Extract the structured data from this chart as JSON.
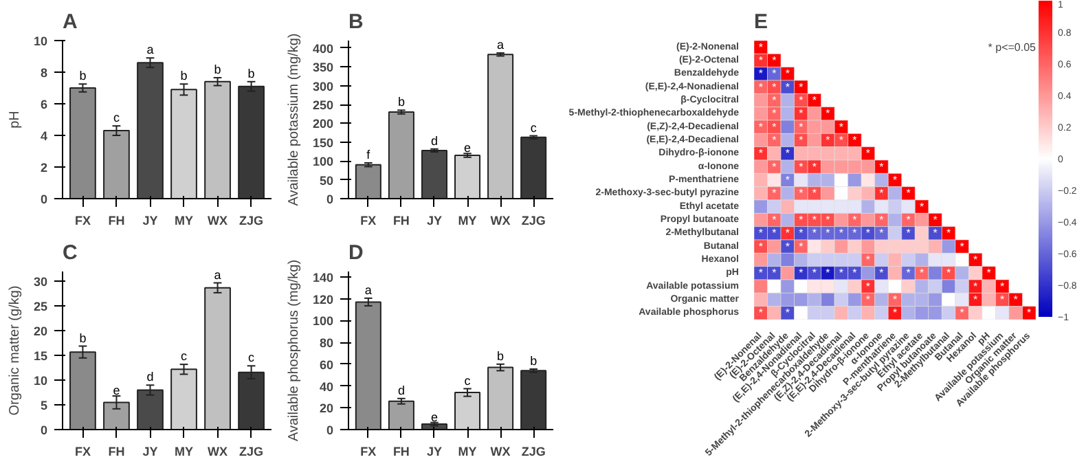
{
  "chart_data": [
    {
      "type": "bar",
      "title": "A",
      "ylabel": "pH",
      "categories": [
        "FX",
        "FH",
        "JY",
        "MY",
        "WX",
        "ZJG"
      ],
      "values": [
        7.0,
        4.3,
        8.6,
        6.9,
        7.4,
        7.1
      ],
      "errors": [
        0.25,
        0.3,
        0.3,
        0.35,
        0.25,
        0.3
      ],
      "value_labels": [
        "b",
        "c",
        "a",
        "b",
        "b",
        "b"
      ],
      "colors": [
        "#8a8a8a",
        "#a0a0a0",
        "#4a4a4a",
        "#d0d0d0",
        "#c0c0c0",
        "#383838"
      ],
      "ylim": [
        0,
        10
      ],
      "yticks": [
        0,
        2,
        4,
        6,
        8,
        10
      ],
      "grid": false
    },
    {
      "type": "bar",
      "title": "B",
      "ylabel": "Available potassium (mg/kg)",
      "categories": [
        "FX",
        "FH",
        "JY",
        "MY",
        "WX",
        "ZJG"
      ],
      "values": [
        90,
        230,
        128,
        115,
        383,
        163
      ],
      "errors": [
        5,
        5,
        4,
        5,
        4,
        4
      ],
      "value_labels": [
        "f",
        "b",
        "d",
        "e",
        "a",
        "c"
      ],
      "colors": [
        "#8a8a8a",
        "#a0a0a0",
        "#4a4a4a",
        "#d0d0d0",
        "#c0c0c0",
        "#383838"
      ],
      "ylim": [
        0,
        420
      ],
      "yticks": [
        0,
        50,
        100,
        150,
        200,
        250,
        300,
        350,
        400
      ],
      "grid": false
    },
    {
      "type": "bar",
      "title": "C",
      "ylabel": "Organic matter (g/kg)",
      "categories": [
        "FX",
        "FH",
        "JY",
        "MY",
        "WX",
        "ZJG"
      ],
      "values": [
        15.7,
        5.5,
        8.0,
        12.2,
        28.7,
        11.6
      ],
      "errors": [
        1.2,
        1.3,
        1.0,
        1.0,
        1.0,
        1.3
      ],
      "value_labels": [
        "b",
        "e",
        "d",
        "c",
        "a",
        "c"
      ],
      "colors": [
        "#8a8a8a",
        "#a0a0a0",
        "#4a4a4a",
        "#d0d0d0",
        "#c0c0c0",
        "#383838"
      ],
      "ylim": [
        0,
        32
      ],
      "yticks": [
        0,
        5,
        10,
        15,
        20,
        25,
        30
      ],
      "grid": false
    },
    {
      "type": "bar",
      "title": "D",
      "ylabel": "Available phosphorus (mg/kg)",
      "categories": [
        "FX",
        "FH",
        "JY",
        "MY",
        "WX",
        "ZJG"
      ],
      "values": [
        117,
        26,
        5,
        34,
        57,
        54
      ],
      "errors": [
        3.5,
        2.5,
        1.5,
        3.5,
        3,
        1.5
      ],
      "value_labels": [
        "a",
        "d",
        "e",
        "c",
        "b",
        "b"
      ],
      "colors": [
        "#8a8a8a",
        "#a0a0a0",
        "#4a4a4a",
        "#d0d0d0",
        "#c0c0c0",
        "#383838"
      ],
      "ylim": [
        0,
        145
      ],
      "yticks": [
        0,
        20,
        40,
        60,
        80,
        100,
        120,
        140
      ],
      "grid": false
    },
    {
      "type": "heatmap",
      "title": "E",
      "categories": [
        "(E)-2-Nonenal",
        "(E)-2-Octenal",
        "Benzaldehyde",
        "(E,E)-2,4-Nonadienal",
        "β-Cyclocitral",
        "5-Methyl-2-thiophenecarboxaldehyde",
        "(E,Z)-2,4-Decadienal",
        "(E,E)-2,4-Decadienal",
        "Dihydro-β-ionone",
        "α-Ionone",
        "P-menthatriene",
        "2-Methoxy-3-sec-butyl pyrazine",
        "Ethyl acetate",
        "Propyl butanoate",
        "2-Methylbutanal",
        "Butanal",
        "Hexanol",
        "pH",
        "Available potassium",
        "Organic matter",
        "Available phosphorus"
      ],
      "y_categories": [
        "(E)-2-Nonenal",
        "(E)-2-Octenal",
        "Benzaldehyde",
        "(E,E)-2,4-Nonadienal",
        "β-Cyclocitral",
        "5-Methyl-2-thiophenecarboxaldehyde",
        "(E,Z)-2,4-Decadienal",
        "(E,E)-2,4-Decadienal",
        "Dihydro-β-ionone",
        "α-Ionone",
        "P-menthatriene",
        "2-Methoxy-3-sec-butyl pyrazine",
        "Ethyl acetate",
        "Propyl butanoate",
        "2-Methylbutanal",
        "Butanal",
        "Hexanol",
        "pH",
        "Available potassium",
        "Organic matter",
        "Available phosphorus"
      ],
      "cells": [
        [
          1,
          null,
          null,
          null,
          null,
          null,
          null,
          null,
          null,
          null,
          null,
          null,
          null,
          null,
          null,
          null,
          null,
          null,
          null,
          null,
          null
        ],
        [
          0.8,
          1,
          null,
          null,
          null,
          null,
          null,
          null,
          null,
          null,
          null,
          null,
          null,
          null,
          null,
          null,
          null,
          null,
          null,
          null,
          null
        ],
        [
          -0.9,
          -0.6,
          1,
          null,
          null,
          null,
          null,
          null,
          null,
          null,
          null,
          null,
          null,
          null,
          null,
          null,
          null,
          null,
          null,
          null,
          null
        ],
        [
          0.6,
          0.7,
          -0.7,
          1,
          null,
          null,
          null,
          null,
          null,
          null,
          null,
          null,
          null,
          null,
          null,
          null,
          null,
          null,
          null,
          null,
          null
        ],
        [
          0.4,
          0.6,
          -0.3,
          0.7,
          1,
          null,
          null,
          null,
          null,
          null,
          null,
          null,
          null,
          null,
          null,
          null,
          null,
          null,
          null,
          null,
          null
        ],
        [
          0.4,
          0.6,
          -0.3,
          0.8,
          0.4,
          1,
          null,
          null,
          null,
          null,
          null,
          null,
          null,
          null,
          null,
          null,
          null,
          null,
          null,
          null,
          null
        ],
        [
          0.6,
          0.7,
          -0.5,
          0.6,
          0.4,
          0.4,
          1,
          null,
          null,
          null,
          null,
          null,
          null,
          null,
          null,
          null,
          null,
          null,
          null,
          null,
          null
        ],
        [
          0.4,
          0.6,
          -0.3,
          0.7,
          0.4,
          0.8,
          0.7,
          1,
          null,
          null,
          null,
          null,
          null,
          null,
          null,
          null,
          null,
          null,
          null,
          null,
          null
        ],
        [
          0.8,
          0.3,
          -0.8,
          0.3,
          0.3,
          0.3,
          0.3,
          0.3,
          1,
          null,
          null,
          null,
          null,
          null,
          null,
          null,
          null,
          null,
          null,
          null,
          null
        ],
        [
          0.4,
          0.6,
          -0.3,
          0.7,
          0.8,
          0.4,
          0.4,
          0.4,
          0.4,
          1,
          null,
          null,
          null,
          null,
          null,
          null,
          null,
          null,
          null,
          null,
          null
        ],
        [
          0.3,
          0.1,
          -0.5,
          -0.1,
          -0.3,
          -0.3,
          0,
          -0.4,
          0.1,
          -0.3,
          1,
          null,
          null,
          null,
          null,
          null,
          null,
          null,
          null,
          null,
          null
        ],
        [
          0.3,
          0.6,
          -0.3,
          0.6,
          0.7,
          0.4,
          0,
          0.2,
          0.3,
          0.8,
          -0.3,
          1,
          null,
          null,
          null,
          null,
          null,
          null,
          null,
          null,
          null
        ],
        [
          -0.4,
          -0.2,
          0.3,
          -0.1,
          -0.1,
          -0.1,
          -0.1,
          -0.1,
          -0.3,
          -0.1,
          -0.2,
          -0.1,
          1,
          null,
          null,
          null,
          null,
          null,
          null,
          null,
          null
        ],
        [
          0.4,
          0.6,
          -0.3,
          0.7,
          0.7,
          0.7,
          0.4,
          0.6,
          0.4,
          0.6,
          -0.3,
          0.6,
          0.4,
          1,
          null,
          null,
          null,
          null,
          null,
          null,
          null
        ],
        [
          -0.7,
          -0.7,
          0.8,
          -0.7,
          -0.6,
          -0.6,
          -0.6,
          -0.6,
          -0.7,
          -0.6,
          -0.2,
          -0.7,
          0.2,
          -0.7,
          1,
          null,
          null,
          null,
          null,
          null,
          null
        ],
        [
          0.7,
          0.4,
          -0.7,
          0.6,
          0.1,
          0.2,
          0.4,
          0.2,
          0.4,
          0.2,
          0.2,
          0.2,
          0.2,
          0.3,
          -0.4,
          1,
          null,
          null,
          null,
          null,
          null
        ],
        [
          0.4,
          -0.3,
          -0.5,
          -0.3,
          -0.2,
          -0.2,
          -0.2,
          -0.2,
          0.6,
          -0.2,
          0.3,
          -0.2,
          -0.3,
          -0.1,
          -0.1,
          0,
          1,
          null,
          null,
          null,
          null
        ],
        [
          -0.7,
          -0.7,
          0.4,
          -0.8,
          -0.7,
          -0.9,
          -0.7,
          -0.7,
          -0.4,
          -0.7,
          0.3,
          -0.6,
          0.6,
          -0.5,
          0.7,
          -0.3,
          0.2,
          1,
          null,
          null,
          null
        ],
        [
          0.5,
          0,
          -0.4,
          0,
          0.1,
          0.1,
          -0.1,
          0.2,
          0.8,
          -0.1,
          0,
          0.2,
          -0.3,
          -0.2,
          -0.5,
          -0.2,
          0.9,
          0.3,
          1,
          null,
          null
        ],
        [
          0.3,
          -0.3,
          -0.4,
          -0.4,
          -0.3,
          -0.5,
          -0.2,
          -0.4,
          0.6,
          -0.3,
          0.6,
          -0.3,
          -0.3,
          -0.4,
          0,
          -0.1,
          0.9,
          0.3,
          0.7,
          1,
          null
        ],
        [
          0.7,
          0.3,
          -0.7,
          0,
          -0.2,
          -0.2,
          0.3,
          -0.2,
          0.3,
          -0.2,
          0.9,
          -0.3,
          -0.4,
          -0.4,
          -0.2,
          0.6,
          0.2,
          0,
          -0.1,
          0.4,
          1
        ]
      ],
      "cell_labels": [
        [
          "*",
          null,
          null,
          null,
          null,
          null,
          null,
          null,
          null,
          null,
          null,
          null,
          null,
          null,
          null,
          null,
          null,
          null,
          null,
          null,
          null
        ],
        [
          "*",
          "*",
          null,
          null,
          null,
          null,
          null,
          null,
          null,
          null,
          null,
          null,
          null,
          null,
          null,
          null,
          null,
          null,
          null,
          null,
          null
        ],
        [
          "*",
          "*",
          "*",
          null,
          null,
          null,
          null,
          null,
          null,
          null,
          null,
          null,
          null,
          null,
          null,
          null,
          null,
          null,
          null,
          null,
          null
        ],
        [
          "*",
          "*",
          "*",
          "*",
          null,
          null,
          null,
          null,
          null,
          null,
          null,
          null,
          null,
          null,
          null,
          null,
          null,
          null,
          null,
          null,
          null
        ],
        [
          null,
          "*",
          null,
          "*",
          "*",
          null,
          null,
          null,
          null,
          null,
          null,
          null,
          null,
          null,
          null,
          null,
          null,
          null,
          null,
          null,
          null
        ],
        [
          null,
          "*",
          null,
          "*",
          null,
          "*",
          null,
          null,
          null,
          null,
          null,
          null,
          null,
          null,
          null,
          null,
          null,
          null,
          null,
          null,
          null
        ],
        [
          "*",
          "*",
          null,
          "*",
          null,
          null,
          "*",
          null,
          null,
          null,
          null,
          null,
          null,
          null,
          null,
          null,
          null,
          null,
          null,
          null,
          null
        ],
        [
          null,
          "*",
          null,
          "*",
          null,
          "*",
          "*",
          "*",
          null,
          null,
          null,
          null,
          null,
          null,
          null,
          null,
          null,
          null,
          null,
          null,
          null
        ],
        [
          "*",
          null,
          "*",
          null,
          null,
          null,
          null,
          null,
          "*",
          null,
          null,
          null,
          null,
          null,
          null,
          null,
          null,
          null,
          null,
          null,
          null
        ],
        [
          null,
          "*",
          null,
          "*",
          "*",
          null,
          null,
          null,
          null,
          "*",
          null,
          null,
          null,
          null,
          null,
          null,
          null,
          null,
          null,
          null,
          null
        ],
        [
          null,
          null,
          "*",
          null,
          null,
          null,
          null,
          null,
          null,
          null,
          "*",
          null,
          null,
          null,
          null,
          null,
          null,
          null,
          null,
          null,
          null
        ],
        [
          null,
          "*",
          null,
          "*",
          "*",
          null,
          null,
          null,
          null,
          "*",
          null,
          "*",
          null,
          null,
          null,
          null,
          null,
          null,
          null,
          null,
          null
        ],
        [
          null,
          null,
          null,
          null,
          null,
          null,
          null,
          null,
          null,
          null,
          null,
          null,
          "*",
          null,
          null,
          null,
          null,
          null,
          null,
          null,
          null
        ],
        [
          null,
          "*",
          null,
          "*",
          "*",
          "*",
          null,
          "*",
          null,
          "*",
          null,
          "*",
          null,
          "*",
          null,
          null,
          null,
          null,
          null,
          null,
          null
        ],
        [
          "*",
          "*",
          "*",
          "*",
          "*",
          "*",
          "*",
          "*",
          "*",
          "*",
          null,
          "*",
          null,
          "*",
          "*",
          null,
          null,
          null,
          null,
          null,
          null
        ],
        [
          "*",
          null,
          "*",
          "*",
          null,
          null,
          null,
          null,
          null,
          null,
          null,
          null,
          null,
          null,
          null,
          "*",
          null,
          null,
          null,
          null,
          null
        ],
        [
          null,
          null,
          null,
          null,
          null,
          null,
          null,
          null,
          "*",
          null,
          null,
          null,
          null,
          null,
          null,
          null,
          "*",
          null,
          null,
          null,
          null
        ],
        [
          "*",
          "*",
          null,
          "*",
          "*",
          "*",
          "*",
          "*",
          null,
          "*",
          null,
          "*",
          "*",
          null,
          "*",
          null,
          null,
          "*",
          null,
          null,
          null
        ],
        [
          null,
          null,
          null,
          null,
          null,
          null,
          null,
          null,
          "*",
          null,
          null,
          null,
          null,
          null,
          null,
          null,
          "*",
          null,
          "*",
          null,
          null
        ],
        [
          null,
          null,
          null,
          null,
          null,
          null,
          null,
          null,
          "*",
          null,
          "*",
          null,
          null,
          null,
          null,
          null,
          "*",
          null,
          "*",
          "*",
          null
        ],
        [
          "*",
          null,
          "*",
          null,
          null,
          null,
          null,
          null,
          null,
          null,
          "*",
          null,
          null,
          null,
          null,
          "*",
          null,
          null,
          null,
          null,
          "*"
        ]
      ],
      "clim": [
        -1,
        1
      ],
      "cticks": [
        -1,
        -0.8,
        -0.6,
        -0.4,
        -0.2,
        0,
        0.2,
        0.4,
        0.6,
        0.8,
        1
      ],
      "annotations": [
        "* p<=0.05"
      ]
    }
  ]
}
